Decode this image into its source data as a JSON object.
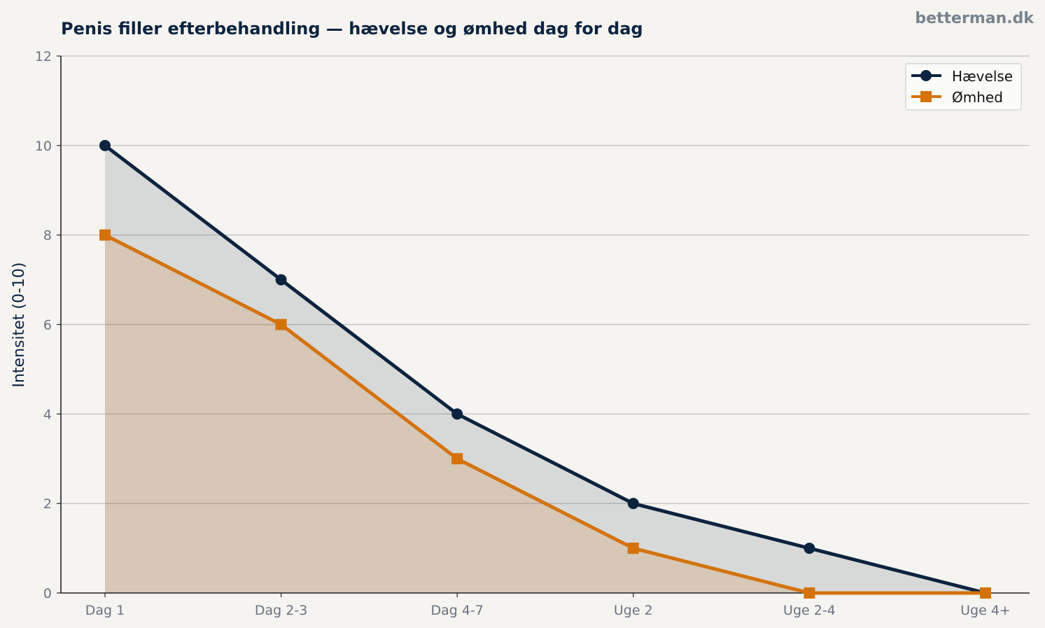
{
  "title": "Penis filler efterbehandling — hævelse og ømhed dag for dag",
  "watermark": "betterman.dk",
  "chart_data": {
    "type": "area",
    "title": "Penis filler efterbehandling — hævelse og ømhed dag for dag",
    "xlabel": "",
    "ylabel": "Intensitet (0-10)",
    "categories": [
      "Dag 1",
      "Dag 2-3",
      "Dag 4-7",
      "Uge 2",
      "Uge 2-4",
      "Uge 4+"
    ],
    "ylim": [
      0,
      12
    ],
    "yticks": [
      0,
      2,
      4,
      6,
      8,
      10,
      12
    ],
    "grid": true,
    "legend_position": "top-right",
    "series": [
      {
        "name": "Hævelse",
        "values": [
          10,
          7,
          4,
          2,
          1,
          0
        ],
        "color": "#0c2340",
        "marker": "circle"
      },
      {
        "name": "Ømhed",
        "values": [
          8,
          6,
          3,
          1,
          0,
          0
        ],
        "color": "#d4720a",
        "marker": "square"
      }
    ]
  }
}
